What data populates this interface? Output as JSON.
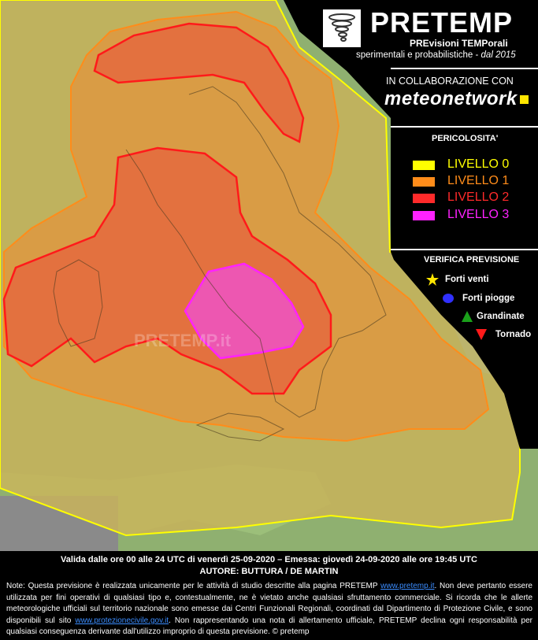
{
  "brand": {
    "name": "PRETEMP",
    "sub1": "PREvisioni TEMPorali",
    "sub2": "sperimentali e probabilistiche - ",
    "sub2_italic": "dal 2015"
  },
  "collab": {
    "label": "IN COLLABORAZIONE CON",
    "partner": "meteonetwork"
  },
  "legend": {
    "title": "PERICOLOSITA'",
    "levels": [
      {
        "label": "LIVELLO 0",
        "color": "#ffff00"
      },
      {
        "label": "LIVELLO 1",
        "color": "#ff8c1a"
      },
      {
        "label": "LIVELLO 2",
        "color": "#ff2a2a"
      },
      {
        "label": "LIVELLO 3",
        "color": "#ff22ff"
      }
    ]
  },
  "verifica": {
    "title": "VERIFICA PREVISIONE",
    "items": [
      {
        "label": "Forti venti",
        "symbol": "star-icon",
        "color": "#ffe600"
      },
      {
        "label": "Forti piogge",
        "symbol": "circle-icon",
        "color": "#3030ff"
      },
      {
        "label": "Grandinate",
        "symbol": "triangle-up-icon",
        "color": "#1aa01a"
      },
      {
        "label": "Tornado",
        "symbol": "triangle-down-icon",
        "color": "#ff1a1a"
      }
    ]
  },
  "watermark": "PRETEMP.it",
  "footer": {
    "validity": "Valida dalle ore 00 alle 24 UTC di venerdì 25-09-2020 – Emessa: giovedì 24-09-2020 alle ore 19:45 UTC",
    "authors": "AUTORE: BUTTURA / DE MARTIN",
    "note_a": "Note: Questa previsione è realizzata unicamente per le attività di studio descritte alla pagina PRETEMP ",
    "link1": "www.pretemp.it",
    "note_b": ". Non deve pertanto essere utilizzata per fini operativi di qualsiasi tipo e, contestualmente, ne è vietato anche qualsiasi sfruttamento commerciale. Si ricorda che le allerte meteorologiche ufficiali sul territorio nazionale sono emesse dai Centri Funzionali Regionali, coordinati dal Dipartimento di Protezione Civile, e sono disponibili sul sito ",
    "link2": "www.protezionecivile.gov.it",
    "note_c": ". Non rappresentando una nota di allertamento ufficiale, PRETEMP declina ogni responsabilità per qualsiasi conseguenza derivante dall'utilizzo improprio di questa previsione.  © pretemp"
  },
  "colors": {
    "sea": "#7ab8d8",
    "land": "#8fb070",
    "level0_fill": "#c8b35a",
    "level1_fill": "#e0963e",
    "level2_fill": "#e46a3e",
    "level3_fill": "#ee52c6"
  }
}
